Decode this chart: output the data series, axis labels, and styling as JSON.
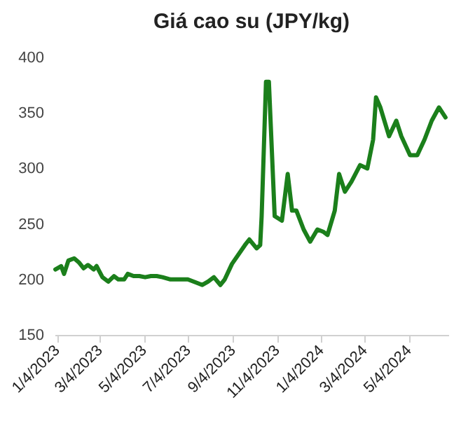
{
  "chart_data": {
    "type": "line",
    "title": "Giá cao su (JPY/kg)",
    "x": [
      "2023-01-02",
      "2023-01-10",
      "2023-01-14",
      "2023-01-20",
      "2023-01-28",
      "2023-02-04",
      "2023-02-10",
      "2023-02-16",
      "2023-02-24",
      "2023-02-28",
      "2023-03-08",
      "2023-03-16",
      "2023-03-24",
      "2023-03-30",
      "2023-04-07",
      "2023-04-12",
      "2023-04-20",
      "2023-04-28",
      "2023-05-06",
      "2023-05-14",
      "2023-05-22",
      "2023-05-30",
      "2023-06-10",
      "2023-06-22",
      "2023-07-04",
      "2023-07-16",
      "2023-07-24",
      "2023-08-01",
      "2023-08-09",
      "2023-08-18",
      "2023-08-24",
      "2023-09-03",
      "2023-09-21",
      "2023-09-27",
      "2023-10-07",
      "2023-10-12",
      "2023-10-14",
      "2023-10-20",
      "2023-10-24",
      "2023-11-01",
      "2023-11-11",
      "2023-11-19",
      "2023-11-25",
      "2023-12-01",
      "2023-12-11",
      "2023-12-20",
      "2023-12-30",
      "2024-01-07",
      "2024-01-13",
      "2024-01-23",
      "2024-01-29",
      "2024-02-06",
      "2024-02-15",
      "2024-02-27",
      "2024-03-08",
      "2024-03-16",
      "2024-03-20",
      "2024-03-26",
      "2024-04-07",
      "2024-04-17",
      "2024-04-24",
      "2024-05-06",
      "2024-05-16",
      "2024-05-26",
      "2024-06-05",
      "2024-06-15",
      "2024-06-24"
    ],
    "series": [
      {
        "color": "#1b7f1b",
        "values": [
          209,
          212,
          205,
          217,
          219,
          215,
          210,
          213,
          209,
          212,
          202,
          198,
          203,
          200,
          200,
          205,
          203,
          203,
          202,
          203,
          203,
          202,
          200,
          200,
          200,
          197,
          195,
          198,
          202,
          195,
          200,
          214,
          231,
          236,
          228,
          231,
          257,
          378,
          378,
          257,
          253,
          295,
          262,
          262,
          245,
          234,
          245,
          243,
          240,
          262,
          295,
          279,
          288,
          303,
          300,
          326,
          364,
          355,
          329,
          343,
          329,
          312,
          312,
          326,
          343,
          355,
          346
        ]
      }
    ],
    "xlim": [
      "2023-01-01",
      "2024-06-28"
    ],
    "xticks": [
      {
        "value": "2023-01-04",
        "label": "1/4/2023"
      },
      {
        "value": "2023-03-04",
        "label": "3/4/2023"
      },
      {
        "value": "2023-05-04",
        "label": "5/4/2023"
      },
      {
        "value": "2023-07-04",
        "label": "7/4/2023"
      },
      {
        "value": "2023-09-04",
        "label": "9/4/2023"
      },
      {
        "value": "2023-11-04",
        "label": "11/4/2023"
      },
      {
        "value": "2024-01-04",
        "label": "1/4/2024"
      },
      {
        "value": "2024-03-04",
        "label": "3/4/2024"
      },
      {
        "value": "2024-05-04",
        "label": "5/4/2024"
      }
    ],
    "ylim": [
      150,
      400
    ],
    "yticks": [
      150,
      200,
      250,
      300,
      350,
      400
    ],
    "grid": false,
    "legend": false,
    "marker": "none",
    "line_style": "solid"
  }
}
